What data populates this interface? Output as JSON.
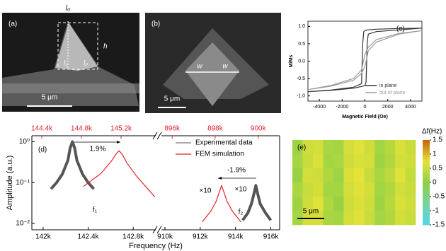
{
  "image_panels": [
    {
      "label": "(a)",
      "scale_bar": "5 μm",
      "annotations": [
        "l₀",
        "h",
        "l₁",
        "l₂"
      ]
    },
    {
      "label": "(b)",
      "scale_bar": "5 μm",
      "annotations": [
        "w",
        "w"
      ]
    }
  ],
  "chart_data": [
    {
      "type": "line",
      "label": "(c)",
      "xlabel": "Magnetic Field (Oe)",
      "ylabel": "M/Ms",
      "xlim": [
        -5000,
        5000
      ],
      "xticks": [
        -4000,
        -2000,
        0,
        2000,
        4000
      ],
      "ylim": [
        -1.15,
        1.15
      ],
      "yticks": [
        {
          "value": -1,
          "label": "-1.0"
        },
        -0.5,
        {
          "value": 0,
          "label": "0.0"
        },
        0.5,
        {
          "value": 1,
          "label": "1.0"
        }
      ],
      "legend": "lower right",
      "series": [
        {
          "name": "in plane",
          "color": "#333333",
          "x": [
            5000,
            3000,
            1000,
            200,
            0,
            -100,
            -200,
            -300,
            -1000,
            -3000,
            -5000,
            null,
            -5000,
            -3000,
            -1000,
            -200,
            0,
            100,
            200,
            300,
            1000,
            3000,
            5000
          ],
          "values": [
            0.95,
            0.94,
            0.92,
            0.9,
            0.88,
            0.85,
            0.5,
            -0.65,
            -0.75,
            -0.83,
            -0.88,
            null,
            -0.88,
            -0.84,
            -0.78,
            -0.72,
            -0.7,
            -0.6,
            0.55,
            0.78,
            0.85,
            0.9,
            0.95
          ]
        },
        {
          "name": "out of plane",
          "color": "#9a9a9a",
          "x": [
            5000,
            3000,
            1000,
            300,
            0,
            -300,
            -1000,
            -3000,
            -5000,
            null,
            -5000,
            -3000,
            -1000,
            -300,
            0,
            300,
            1000,
            3000,
            5000
          ],
          "values": [
            0.88,
            0.8,
            0.62,
            0.4,
            0.2,
            -0.25,
            -0.5,
            -0.7,
            -0.82,
            null,
            -0.82,
            -0.72,
            -0.55,
            -0.35,
            -0.15,
            0.3,
            0.55,
            0.78,
            0.88
          ]
        }
      ]
    },
    {
      "type": "line",
      "label": "(d)",
      "xlabel": "Frequency (Hz)",
      "ylabel": "Amplitude (a.u.)",
      "log_y": true,
      "xlim": [
        [
          141900,
          143000
        ],
        [
          909800,
          916500
        ]
      ],
      "xticks": [
        {
          "value": 142000,
          "label": "142k"
        },
        {
          "value": 142400,
          "label": "142.4k"
        },
        {
          "value": 142800,
          "label": "142.8k"
        },
        {
          "value": 910000,
          "label": "910k"
        },
        {
          "value": 912000,
          "label": "912k"
        },
        {
          "value": 914000,
          "label": "914k"
        },
        {
          "value": 916000,
          "label": "916k"
        }
      ],
      "x2lim": [
        [
          144300,
          145550
        ],
        [
          895500,
          901000
        ]
      ],
      "x2color": "#e8202a",
      "x2ticks": [
        {
          "value": 144400,
          "label": "144.4k"
        },
        {
          "value": 144800,
          "label": "144.8k"
        },
        {
          "value": 145200,
          "label": "145.2k"
        },
        {
          "value": 896000,
          "label": "896k"
        },
        {
          "value": 898000,
          "label": "898k"
        },
        {
          "value": 900000,
          "label": "900k"
        }
      ],
      "ylim": [
        0.007,
        1.4
      ],
      "yticks": [
        {
          "value": 0.01,
          "label": "10⁻²"
        },
        {
          "value": 0.1,
          "label": "10⁻¹"
        },
        {
          "value": 1,
          "label": "10⁰"
        }
      ],
      "legend": "upper right",
      "annotations": [
        "1.9%",
        "-1.9%",
        "×10",
        "×10",
        "f₁",
        "f₂"
      ],
      "series": [
        {
          "name": "Experimental data",
          "color": "#555555",
          "x": [
            142070,
            142120,
            142170,
            142220,
            142240,
            142260,
            142280,
            142300,
            142350,
            142400,
            142450,
            null,
            914400,
            914700,
            914900,
            915050,
            915150,
            915250,
            915400,
            915700,
            916000
          ],
          "values": [
            0.07,
            0.1,
            0.16,
            0.35,
            0.7,
            1.0,
            0.7,
            0.35,
            0.16,
            0.1,
            0.07,
            null,
            0.012,
            0.018,
            0.03,
            0.055,
            0.085,
            0.055,
            0.03,
            0.018,
            0.012
          ]
        },
        {
          "name": "FEM simulation",
          "color": "#e8202a",
          "axis": "x2",
          "x": [
            144820,
            145000,
            145100,
            145150,
            145180,
            145210,
            145260,
            145360,
            145540,
            null,
            897400,
            897800,
            898050,
            898200,
            898300,
            898400,
            898550,
            898800,
            899200
          ],
          "values": [
            0.08,
            0.17,
            0.33,
            0.5,
            0.6,
            0.5,
            0.3,
            0.14,
            0.045,
            null,
            0.011,
            0.02,
            0.035,
            0.06,
            0.085,
            0.06,
            0.035,
            0.02,
            0.011
          ]
        }
      ]
    },
    {
      "type": "heatmap",
      "label": "(e)",
      "colorbar_label": "Δf(Hz)",
      "clim": [
        -1.5,
        1.5
      ],
      "cticks": [
        1.5,
        1,
        0.5,
        0,
        -0.5,
        -1,
        -1.5
      ],
      "colormap": [
        "#52d6ea",
        "#78d2a0",
        "#8cd046",
        "#e6e238",
        "#c8620e"
      ],
      "scale_bar": "5 μm",
      "values": [
        [
          0.15,
          0.55,
          0.6,
          0.25,
          0.2,
          0.6,
          0.7,
          0.55,
          0.2,
          0.35,
          0.65,
          0.5
        ],
        [
          0.2,
          0.5,
          0.65,
          0.2,
          0.25,
          0.55,
          0.65,
          0.6,
          0.15,
          0.3,
          0.6,
          0.55
        ],
        [
          0.1,
          0.6,
          0.55,
          0.3,
          0.15,
          0.65,
          0.75,
          0.5,
          0.25,
          0.4,
          0.7,
          0.45
        ],
        [
          0.25,
          0.5,
          0.6,
          0.2,
          0.2,
          0.6,
          0.7,
          0.6,
          0.2,
          0.3,
          0.6,
          0.5
        ],
        [
          0.15,
          0.55,
          0.7,
          0.3,
          0.1,
          0.55,
          0.65,
          0.55,
          0.15,
          0.35,
          0.65,
          0.55
        ],
        [
          0.2,
          0.6,
          0.6,
          0.25,
          0.2,
          0.6,
          0.7,
          0.5,
          0.2,
          0.3,
          0.6,
          0.5
        ]
      ]
    }
  ]
}
